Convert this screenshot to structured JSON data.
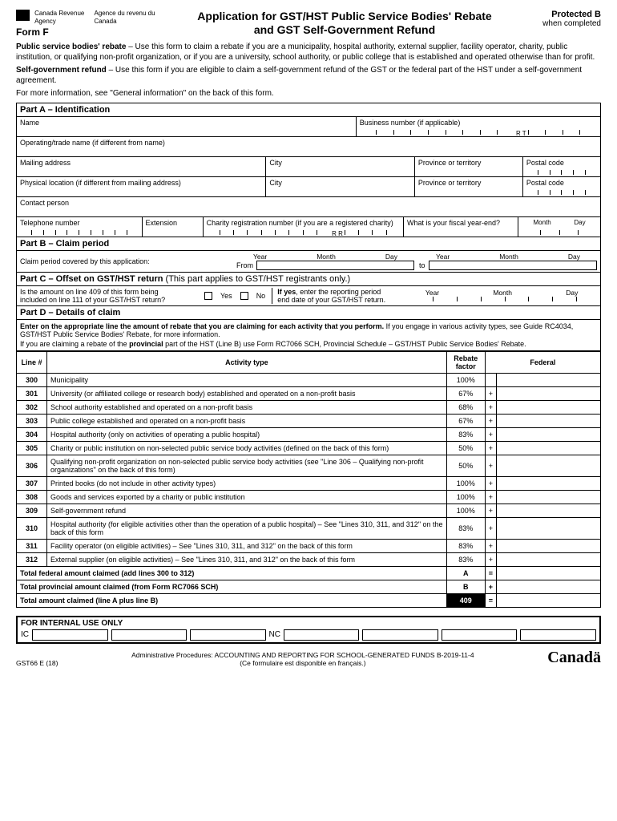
{
  "header": {
    "agency_en": "Canada Revenue Agency",
    "agency_fr": "Agence du revenu du Canada",
    "form_label": "Form F",
    "title_line1": "Application for GST/HST Public Service Bodies' Rebate",
    "title_line2": "and GST Self-Government Refund",
    "protected": "Protected B",
    "protected_sub": "when completed"
  },
  "intro": {
    "p1_bold": "Public service bodies' rebate",
    "p1": " – Use this form to claim a rebate if you are a municipality, hospital authority, external supplier, facility operator, charity, public institution, or qualifying non-profit organization, or if you are a university, school authority, or public college that is established and operated otherwise than for profit.",
    "p2_bold": "Self-government refund",
    "p2": " – Use this form if you are eligible to claim a self-government refund of the GST or the federal part of the HST under a self-government agreement.",
    "p3": "For more information, see \"General information\" on the back of this form."
  },
  "partA": {
    "title": "Part A – Identification",
    "name": "Name",
    "bn": "Business number (if applicable)",
    "bn_rt": "R   T",
    "operating": "Operating/trade name (if different from name)",
    "mailing": "Mailing address",
    "city": "City",
    "province": "Province or territory",
    "postal": "Postal code",
    "physical": "Physical location (if different from mailing address)",
    "contact": "Contact person",
    "telephone": "Telephone number",
    "extension": "Extension",
    "charity": "Charity registration number (if you are a registered charity)",
    "charity_rr": "R   R",
    "fiscal": "What is your fiscal year-end?",
    "month": "Month",
    "day": "Day"
  },
  "partB": {
    "title": "Part B – Claim period",
    "text": "Claim period covered by this application:",
    "from": "From",
    "to": "to",
    "year": "Year",
    "month": "Month",
    "day": "Day"
  },
  "partC": {
    "title": "Part C – Offset on GST/HST return",
    "note": "(This part applies to GST/HST registrants only.)",
    "q1a": "Is the amount on line 409 of this form being",
    "q1b": "included on line 111 of your GST/HST return?",
    "yes": "Yes",
    "no": "No",
    "q2a": "If yes, enter the reporting period",
    "q2b": "end date of your GST/HST return.",
    "year": "Year",
    "month": "Month",
    "day": "Day"
  },
  "partD": {
    "title": "Part D – Details of claim",
    "instr1": "Enter on the appropriate line the amount of rebate that you are claiming for each activity that you perform.",
    "instr2": " If you engage in various activity types, see Guide RC4034, GST/HST Public Service Bodies' Rebate, for more information.",
    "instr3": "If you are claiming a rebate of the provincial part of the HST (Line B) use Form RC7066 SCH, Provincial Schedule – GST/HST Public Service Bodies' Rebate.",
    "h_line": "Line #",
    "h_activity": "Activity type",
    "h_rebate": "Rebate factor",
    "h_federal": "Federal",
    "rows": [
      {
        "line": "300",
        "activity": "Municipality",
        "rebate": "100%",
        "op": ""
      },
      {
        "line": "301",
        "activity": "University (or affiliated college or research body) established and operated on a non-profit basis",
        "rebate": "67%",
        "op": "+"
      },
      {
        "line": "302",
        "activity": "School authority established and operated on a non-profit basis",
        "rebate": "68%",
        "op": "+"
      },
      {
        "line": "303",
        "activity": "Public college established and operated on a non-profit basis",
        "rebate": "67%",
        "op": "+"
      },
      {
        "line": "304",
        "activity": "Hospital authority (only on activities of operating a public hospital)",
        "rebate": "83%",
        "op": "+"
      },
      {
        "line": "305",
        "activity": "Charity or public institution on non-selected public service body activities (defined on the back of this form)",
        "rebate": "50%",
        "op": "+"
      },
      {
        "line": "306",
        "activity": "Qualifying non-profit organization on non-selected public service body activities (see \"Line 306 – Qualifying non-profit organizations\" on the back of this form)",
        "rebate": "50%",
        "op": "+"
      },
      {
        "line": "307",
        "activity": "Printed books (do not include in other activity types)",
        "rebate": "100%",
        "op": "+"
      },
      {
        "line": "308",
        "activity": "Goods and services exported by a charity or public institution",
        "rebate": "100%",
        "op": "+"
      },
      {
        "line": "309",
        "activity": "Self-government refund",
        "rebate": "100%",
        "op": "+"
      },
      {
        "line": "310",
        "activity": "Hospital authority (for eligible activities other than the operation of a public hospital) – See \"Lines 310, 311, and 312\" on the back of this form",
        "rebate": "83%",
        "op": "+"
      },
      {
        "line": "311",
        "activity": "Facility operator (on eligible activities) – See \"Lines 310, 311, and 312\" on the back of this form",
        "rebate": "83%",
        "op": "+"
      },
      {
        "line": "312",
        "activity": "External supplier (on eligible activities) – See \"Lines 310, 311, and 312\" on the back of this form",
        "rebate": "83%",
        "op": "+"
      }
    ],
    "total_fed": "Total federal amount claimed (add lines 300 to 312)",
    "total_prov": "Total provincial amount claimed (from Form RC7066 SCH)",
    "total_all": "Total amount claimed (line A plus line B)",
    "A": "A",
    "B": "B",
    "n409": "409"
  },
  "internal": {
    "title": "FOR INTERNAL USE ONLY",
    "ic": "IC",
    "nc": "NC"
  },
  "footer": {
    "admin": "Administrative Procedures:  ACCOUNTING AND REPORTING FOR SCHOOL-GENERATED FUNDS B-2019-11-4",
    "fr": "(Ce formulaire est disponible en français.)",
    "code": "GST66 E (18)",
    "canada": "Canadä"
  }
}
